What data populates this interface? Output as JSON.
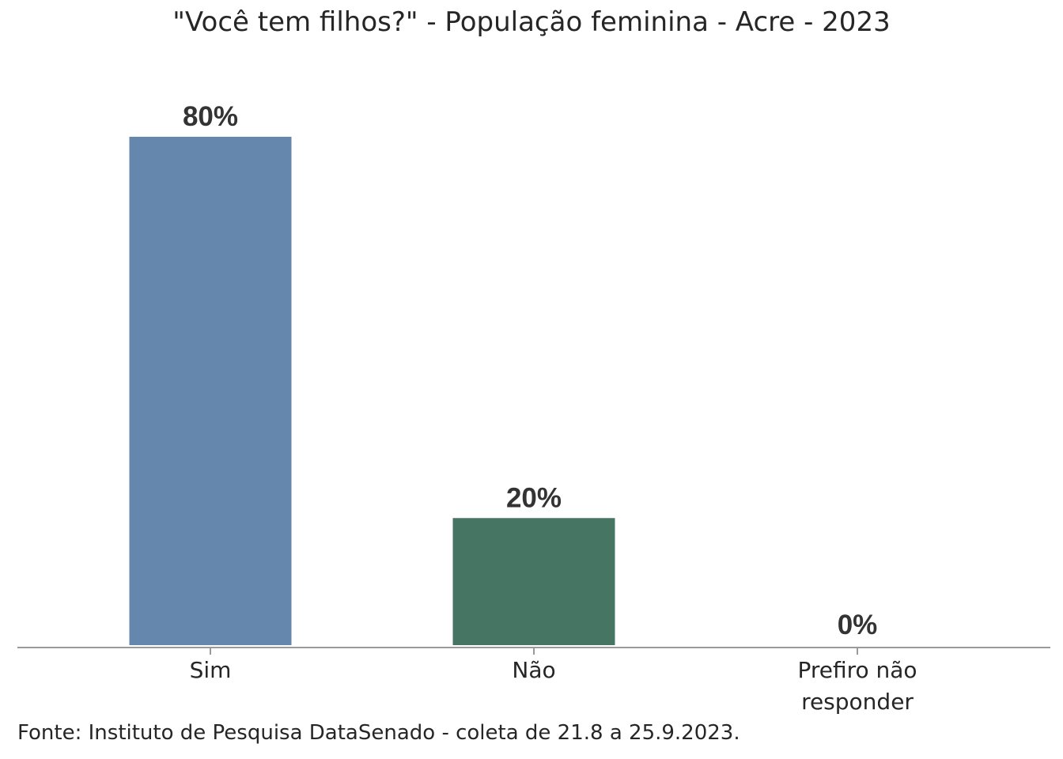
{
  "chart_data": {
    "type": "bar",
    "title": "\"Você tem filhos?\" - População feminina - Acre - 2023",
    "categories": [
      "Sim",
      "Não",
      "Prefiro não responder"
    ],
    "category_lines": [
      [
        "Sim"
      ],
      [
        "Não"
      ],
      [
        "Prefiro não",
        "responder"
      ]
    ],
    "values": [
      80,
      20,
      0
    ],
    "value_labels": [
      "80%",
      "20%",
      "0%"
    ],
    "colors": [
      "#6587ad",
      "#467564",
      "#467564"
    ],
    "ylim": [
      0,
      80
    ],
    "xlabel": "",
    "ylabel": "",
    "grid": false,
    "legend": "none"
  },
  "source": "Fonte: Instituto de Pesquisa DataSenado - coleta de 21.8 a 25.9.2023."
}
